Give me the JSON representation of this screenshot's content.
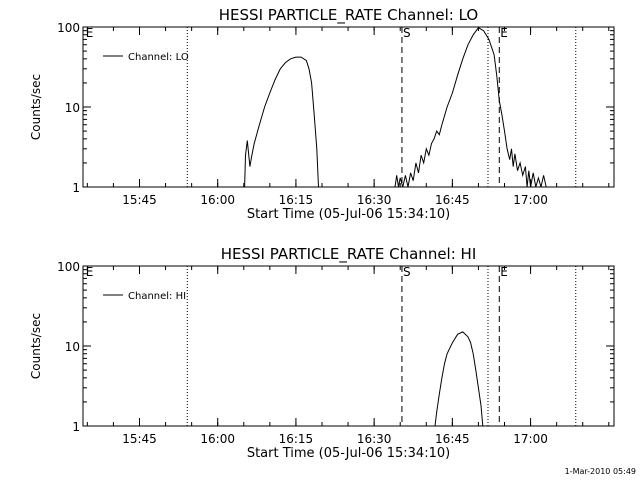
{
  "footer": {
    "timestamp": "1-Mar-2010 05:49"
  },
  "chart_data": [
    {
      "type": "line",
      "title": "HESSI PARTICLE_RATE Channel: LO",
      "xlabel": "Start Time (05-Jul-06 15:34:10)",
      "ylabel": "Counts/sec",
      "xlim": [
        "15:34:10",
        "17:16:00"
      ],
      "ylim": [
        1,
        100
      ],
      "yscale": "log",
      "x_ticks": [
        "15:45",
        "16:00",
        "16:15",
        "16:30",
        "16:45",
        "17:00"
      ],
      "y_ticks": [
        {
          "value": 1,
          "label": "1"
        },
        {
          "value": 10,
          "label": "10"
        },
        {
          "value": 100,
          "label": "100"
        }
      ],
      "grid": false,
      "legend": {
        "position": "top-left",
        "entries": [
          "Channel: LO"
        ]
      },
      "markers": [
        {
          "time": "15:34:30",
          "style": "none",
          "label": "E"
        },
        {
          "time": "15:54:10",
          "style": "dotted",
          "label": ""
        },
        {
          "time": "16:35:20",
          "style": "dashed",
          "label": "S"
        },
        {
          "time": "16:51:50",
          "style": "dotted",
          "label": ""
        },
        {
          "time": "16:54:00",
          "style": "dashed",
          "label": "E"
        },
        {
          "time": "17:08:40",
          "style": "dotted",
          "label": ""
        }
      ],
      "series": [
        {
          "name": "Channel: LO",
          "segments": [
            [
              [
                "16:05:10",
                1
              ],
              [
                "16:05:20",
                2.5
              ],
              [
                "16:05:40",
                3.8
              ],
              [
                "16:06:10",
                1.8
              ],
              [
                "16:06:30",
                2.4
              ],
              [
                "16:07:00",
                3.5
              ],
              [
                "16:08:00",
                6
              ],
              [
                "16:09:00",
                10
              ],
              [
                "16:10:00",
                15
              ],
              [
                "16:11:00",
                22
              ],
              [
                "16:12:00",
                30
              ],
              [
                "16:13:00",
                36
              ],
              [
                "16:14:00",
                40
              ],
              [
                "16:15:00",
                42
              ],
              [
                "16:16:00",
                42
              ],
              [
                "16:17:00",
                38
              ],
              [
                "16:17:30",
                30
              ],
              [
                "16:18:00",
                20
              ],
              [
                "16:18:30",
                8
              ],
              [
                "16:19:00",
                3
              ],
              [
                "16:19:20",
                1
              ]
            ],
            [
              [
                "16:34:00",
                1
              ],
              [
                "16:34:20",
                1.4
              ],
              [
                "16:34:40",
                1
              ],
              [
                "16:35:00",
                1.3
              ],
              [
                "16:35:30",
                1
              ],
              [
                "16:36:00",
                1.4
              ],
              [
                "16:36:30",
                1
              ],
              [
                "16:37:00",
                1.5
              ],
              [
                "16:37:30",
                1.2
              ],
              [
                "16:38:00",
                2
              ],
              [
                "16:38:30",
                1.5
              ],
              [
                "16:39:00",
                2.5
              ],
              [
                "16:39:30",
                2
              ],
              [
                "16:40:00",
                3
              ],
              [
                "16:40:30",
                2.5
              ],
              [
                "16:41:00",
                3.5
              ],
              [
                "16:41:30",
                4
              ],
              [
                "16:42:00",
                5
              ],
              [
                "16:42:30",
                4.5
              ],
              [
                "16:43:00",
                6
              ],
              [
                "16:44:00",
                10
              ],
              [
                "16:45:00",
                15
              ],
              [
                "16:46:00",
                25
              ],
              [
                "16:47:00",
                40
              ],
              [
                "16:48:00",
                60
              ],
              [
                "16:49:00",
                80
              ],
              [
                "16:50:00",
                98
              ],
              [
                "16:51:00",
                90
              ],
              [
                "16:52:00",
                70
              ],
              [
                "16:53:00",
                45
              ],
              [
                "16:53:30",
                25
              ],
              [
                "16:54:00",
                12
              ],
              [
                "16:54:30",
                8
              ],
              [
                "16:55:00",
                5
              ],
              [
                "16:55:30",
                3
              ],
              [
                "16:56:00",
                2.2
              ],
              [
                "16:56:20",
                3
              ],
              [
                "16:56:40",
                1.8
              ],
              [
                "16:57:00",
                2.6
              ],
              [
                "16:57:30",
                1.6
              ],
              [
                "16:58:00",
                2
              ],
              [
                "16:58:30",
                1.4
              ],
              [
                "16:59:00",
                1.8
              ],
              [
                "16:59:20",
                1
              ],
              [
                "16:59:40",
                1.6
              ],
              [
                "17:00:00",
                1
              ],
              [
                "17:00:30",
                1.5
              ],
              [
                "17:01:00",
                1
              ],
              [
                "17:01:30",
                1.3
              ],
              [
                "17:02:00",
                1
              ],
              [
                "17:02:30",
                1.4
              ],
              [
                "17:03:00",
                1
              ]
            ]
          ]
        }
      ]
    },
    {
      "type": "line",
      "title": "HESSI PARTICLE_RATE Channel: HI",
      "xlabel": "Start Time (05-Jul-06 15:34:10)",
      "ylabel": "Counts/sec",
      "xlim": [
        "15:34:10",
        "17:16:00"
      ],
      "ylim": [
        1,
        100
      ],
      "yscale": "log",
      "x_ticks": [
        "15:45",
        "16:00",
        "16:15",
        "16:30",
        "16:45",
        "17:00"
      ],
      "y_ticks": [
        {
          "value": 1,
          "label": "1"
        },
        {
          "value": 10,
          "label": "10"
        },
        {
          "value": 100,
          "label": "100"
        }
      ],
      "grid": false,
      "legend": {
        "position": "top-left",
        "entries": [
          "Channel: HI"
        ]
      },
      "markers": [
        {
          "time": "15:34:30",
          "style": "none",
          "label": "E"
        },
        {
          "time": "15:54:10",
          "style": "dotted",
          "label": ""
        },
        {
          "time": "16:35:20",
          "style": "dashed",
          "label": "S"
        },
        {
          "time": "16:51:50",
          "style": "dotted",
          "label": ""
        },
        {
          "time": "16:54:00",
          "style": "dashed",
          "label": "E"
        },
        {
          "time": "17:08:40",
          "style": "dotted",
          "label": ""
        }
      ],
      "series": [
        {
          "name": "Channel: HI",
          "segments": [
            [
              [
                "16:41:40",
                1
              ],
              [
                "16:42:00",
                1.5
              ],
              [
                "16:42:30",
                2.5
              ],
              [
                "16:43:00",
                4
              ],
              [
                "16:43:30",
                6
              ],
              [
                "16:44:00",
                8
              ],
              [
                "16:45:00",
                11
              ],
              [
                "16:46:00",
                14
              ],
              [
                "16:47:00",
                15
              ],
              [
                "16:48:00",
                13
              ],
              [
                "16:48:30",
                11
              ],
              [
                "16:49:00",
                8
              ],
              [
                "16:49:30",
                5
              ],
              [
                "16:50:00",
                3
              ],
              [
                "16:50:30",
                1.8
              ],
              [
                "16:50:50",
                1
              ]
            ]
          ]
        }
      ]
    }
  ]
}
